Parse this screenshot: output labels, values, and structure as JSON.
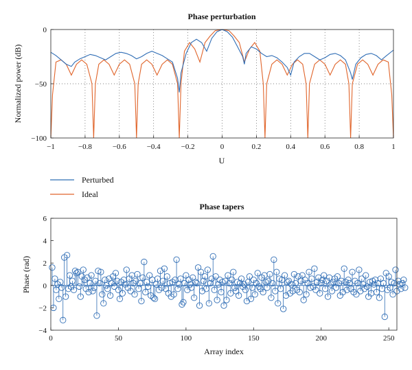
{
  "chart_data": [
    {
      "type": "line",
      "title": "Phase perturbation",
      "xlabel": "U",
      "ylabel": "Normalized power (dB)",
      "xlim": [
        -1,
        1
      ],
      "ylim": [
        -100,
        0
      ],
      "xticks": [
        -1,
        -0.8,
        -0.6,
        -0.4,
        -0.2,
        0,
        0.2,
        0.4,
        0.6,
        0.8,
        1
      ],
      "xtick_labels": [
        "−1",
        "−0.8",
        "−0.6",
        "−0.4",
        "−0.2",
        "0",
        "0.2",
        "0.4",
        "0.6",
        "0.8",
        "1"
      ],
      "yticks": [
        -100,
        -50,
        0
      ],
      "ytick_labels": [
        "−100",
        "−50",
        "0"
      ],
      "grid": true,
      "legend_placement": "below",
      "series": [
        {
          "name": "Perturbed",
          "color": "#2f6db5",
          "x": [
            -1.0,
            -0.97,
            -0.94,
            -0.91,
            -0.88,
            -0.86,
            -0.83,
            -0.8,
            -0.77,
            -0.74,
            -0.71,
            -0.68,
            -0.65,
            -0.62,
            -0.59,
            -0.56,
            -0.53,
            -0.5,
            -0.47,
            -0.44,
            -0.41,
            -0.38,
            -0.35,
            -0.32,
            -0.29,
            -0.26,
            -0.25,
            -0.24,
            -0.21,
            -0.18,
            -0.15,
            -0.12,
            -0.09,
            -0.06,
            -0.03,
            0.0,
            0.03,
            0.06,
            0.09,
            0.12,
            0.13,
            0.14,
            0.17,
            0.2,
            0.23,
            0.26,
            0.29,
            0.32,
            0.35,
            0.38,
            0.4,
            0.42,
            0.45,
            0.48,
            0.51,
            0.54,
            0.57,
            0.6,
            0.63,
            0.66,
            0.69,
            0.72,
            0.75,
            0.76,
            0.78,
            0.81,
            0.84,
            0.87,
            0.9,
            0.93,
            0.96,
            1.0
          ],
          "y": [
            -21,
            -24,
            -28,
            -32,
            -34,
            -30,
            -27,
            -25,
            -23,
            -24,
            -26,
            -28,
            -25,
            -22,
            -21,
            -22,
            -24,
            -27,
            -25,
            -22,
            -20,
            -22,
            -24,
            -27,
            -30,
            -45,
            -58,
            -40,
            -22,
            -12,
            -9,
            -12,
            -20,
            -8,
            -2,
            0,
            -2,
            -7,
            -16,
            -25,
            -32,
            -22,
            -16,
            -18,
            -22,
            -25,
            -24,
            -26,
            -30,
            -35,
            -42,
            -30,
            -25,
            -22,
            -22,
            -25,
            -28,
            -26,
            -23,
            -22,
            -24,
            -28,
            -40,
            -46,
            -32,
            -26,
            -23,
            -22,
            -24,
            -28,
            -24,
            -19
          ]
        },
        {
          "name": "Ideal",
          "color": "#e0642a",
          "x": [
            -1.0,
            -0.99,
            -0.97,
            -0.94,
            -0.91,
            -0.88,
            -0.85,
            -0.82,
            -0.79,
            -0.76,
            -0.75,
            -0.74,
            -0.72,
            -0.69,
            -0.66,
            -0.63,
            -0.6,
            -0.57,
            -0.54,
            -0.51,
            -0.5,
            -0.49,
            -0.47,
            -0.44,
            -0.41,
            -0.38,
            -0.35,
            -0.32,
            -0.29,
            -0.26,
            -0.25,
            -0.24,
            -0.22,
            -0.19,
            -0.16,
            -0.13,
            -0.1,
            -0.07,
            -0.04,
            0.0,
            0.04,
            0.07,
            0.1,
            0.13,
            0.16,
            0.19,
            0.22,
            0.24,
            0.25,
            0.26,
            0.29,
            0.32,
            0.35,
            0.38,
            0.41,
            0.44,
            0.47,
            0.49,
            0.5,
            0.51,
            0.54,
            0.57,
            0.6,
            0.63,
            0.66,
            0.69,
            0.72,
            0.74,
            0.75,
            0.76,
            0.79,
            0.82,
            0.85,
            0.88,
            0.91,
            0.94,
            0.97,
            0.99,
            1.0
          ],
          "y": [
            -100,
            -60,
            -30,
            -28,
            -32,
            -42,
            -32,
            -28,
            -32,
            -50,
            -100,
            -50,
            -32,
            -28,
            -32,
            -42,
            -32,
            -28,
            -32,
            -50,
            -100,
            -50,
            -32,
            -28,
            -32,
            -42,
            -32,
            -28,
            -32,
            -50,
            -100,
            -50,
            -20,
            -12,
            -18,
            -30,
            -12,
            -6,
            -1,
            0,
            -1,
            -6,
            -12,
            -30,
            -18,
            -12,
            -20,
            -50,
            -100,
            -50,
            -32,
            -28,
            -32,
            -42,
            -32,
            -28,
            -32,
            -50,
            -100,
            -50,
            -32,
            -28,
            -32,
            -42,
            -32,
            -28,
            -32,
            -50,
            -100,
            -50,
            -32,
            -28,
            -32,
            -42,
            -32,
            -28,
            -30,
            -60,
            -100
          ]
        }
      ]
    },
    {
      "type": "stem",
      "title": "Phase tapers",
      "xlabel": "Array index",
      "ylabel": "Phase (rad)",
      "xlim": [
        0,
        256
      ],
      "ylim": [
        -4,
        6
      ],
      "xticks": [
        0,
        50,
        100,
        150,
        200,
        250
      ],
      "xtick_labels": [
        "0",
        "50",
        "100",
        "150",
        "200",
        "250"
      ],
      "yticks": [
        -4,
        -2,
        0,
        2,
        4,
        6
      ],
      "ytick_labels": [
        "−4",
        "−2",
        "0",
        "2",
        "4",
        "6"
      ],
      "grid": false,
      "color": "#2f6db5",
      "x_start": 1,
      "x_step": 1,
      "values": [
        1.6,
        -2.0,
        0.6,
        -0.4,
        0.1,
        -1.2,
        0.3,
        -0.2,
        -3.1,
        2.5,
        -1.0,
        2.7,
        -0.3,
        0.9,
        -0.1,
        0.4,
        -0.4,
        1.3,
        1.1,
        1.2,
        -0.1,
        -1.0,
        0.8,
        1.4,
        0.5,
        -0.3,
        0.7,
        -0.6,
        0.2,
        0.9,
        -0.5,
        -0.2,
        0.4,
        -2.7,
        1.3,
        0.2,
        1.2,
        -0.8,
        -1.6,
        0.5,
        0.0,
        -0.3,
        0.6,
        -0.9,
        0.2,
        0.8,
        -0.1,
        1.1,
        0.4,
        -0.4,
        -1.2,
        0.3,
        -0.7,
        0.5,
        0.1,
        1.4,
        -0.2,
        0.6,
        -0.5,
        0.9,
        0.2,
        -0.8,
        0.4,
        1.0,
        -0.3,
        0.2,
        -1.4,
        0.7,
        2.1,
        -0.6,
        0.3,
        -0.1,
        0.9,
        -0.9,
        0.5,
        -1.1,
        -1.2,
        0.1,
        0.6,
        -0.4,
        1.3,
        -0.2,
        0.4,
        1.5,
        -0.3,
        0.8,
        -0.7,
        0.2,
        -1.0,
        0.3,
        -0.8,
        0.5,
        2.3,
        -0.3,
        0.1,
        0.6,
        -1.7,
        -1.5,
        0.2,
        0.9,
        -0.4,
        0.5,
        0.1,
        -0.2,
        0.7,
        -1.1,
        0.3,
        0.2,
        1.6,
        -1.8,
        1.2,
        -0.5,
        0.4,
        0.8,
        -0.3,
        1.4,
        -1.6,
        0.2,
        0.6,
        2.6,
        -0.4,
        0.8,
        -1.3,
        0.1,
        0.5,
        -0.6,
        0.3,
        -1.8,
        0.4,
        -1.3,
        0.9,
        0.2,
        -0.7,
        0.5,
        1.2,
        -0.2,
        -0.5,
        0.3,
        -0.9,
        0.2,
        0.6,
        -0.1,
        0.1,
        -0.4,
        -1.4,
        0.3,
        0.8,
        -1.2,
        -0.2,
        0.5,
        -0.8,
        0.2,
        1.1,
        -0.1,
        -0.3,
        0.7,
        -0.6,
        0.9,
        0.3,
        -0.2,
        0.4,
        1.0,
        -1.1,
        0.2,
        2.3,
        -0.5,
        1.2,
        -1.6,
        0.6,
        -0.3,
        0.5,
        -2.1,
        0.9,
        -0.9,
        0.3,
        0.4,
        -0.7,
        0.1,
        -0.5,
        1.0,
        0.2,
        -0.4,
        0.8,
        -0.6,
        0.4,
        0.9,
        -1.3,
        0.5,
        -0.8,
        0.2,
        1.2,
        -0.2,
        0.6,
        -0.1,
        1.5,
        -0.4,
        0.3,
        0.7,
        -0.7,
        0.2,
        0.5,
        0.9,
        -0.3,
        0.4,
        -1.0,
        0.7,
        0.1,
        -0.5,
        0.3,
        0.6,
        -0.2,
        0.8,
        0.2,
        -0.9,
        0.4,
        -0.6,
        1.5,
        0.3,
        -0.4,
        0.5,
        0.2,
        -0.3,
        1.2,
        -0.6,
        0.4,
        -0.8,
        0.2,
        1.4,
        -0.5,
        0.6,
        0.1,
        -0.3,
        0.9,
        -0.1,
        -1.0,
        0.3,
        -0.7,
        0.4,
        0.1,
        0.5,
        -0.6,
        0.2,
        -1.1,
        0.6,
        -0.3,
        0.2,
        -2.8,
        1.1,
        -0.4,
        0.8,
        -0.2,
        0.3,
        -0.8,
        0.2,
        1.4,
        -0.5,
        0.4,
        0.1,
        -0.3,
        0.2,
        0.5,
        -0.2
      ]
    }
  ]
}
